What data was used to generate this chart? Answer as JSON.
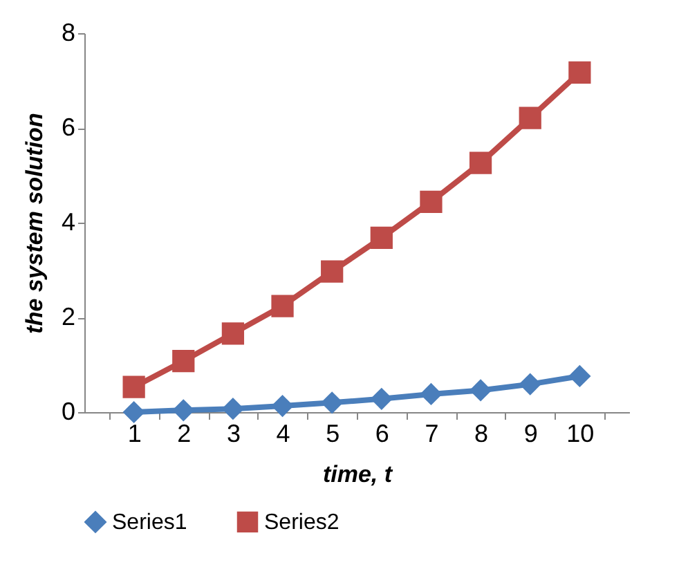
{
  "chart_data": {
    "type": "line",
    "xlabel": "time, t",
    "ylabel": "the system solution",
    "categories": [
      "1",
      "2",
      "3",
      "4",
      "5",
      "6",
      "7",
      "8",
      "9",
      "10"
    ],
    "series": [
      {
        "name": "Series1",
        "color": "#4a7ebb",
        "marker": "diamond",
        "values": [
          0.0,
          0.04,
          0.07,
          0.13,
          0.2,
          0.28,
          0.38,
          0.46,
          0.59,
          0.76
        ]
      },
      {
        "name": "Series2",
        "color": "#be4b48",
        "marker": "square",
        "values": [
          0.53,
          1.08,
          1.66,
          2.24,
          2.97,
          3.68,
          4.44,
          5.26,
          6.21,
          7.17
        ]
      }
    ],
    "ylim": [
      0,
      8
    ],
    "yticks": [
      0,
      2,
      4,
      6,
      8
    ],
    "grid": false,
    "legend": "bottom"
  }
}
